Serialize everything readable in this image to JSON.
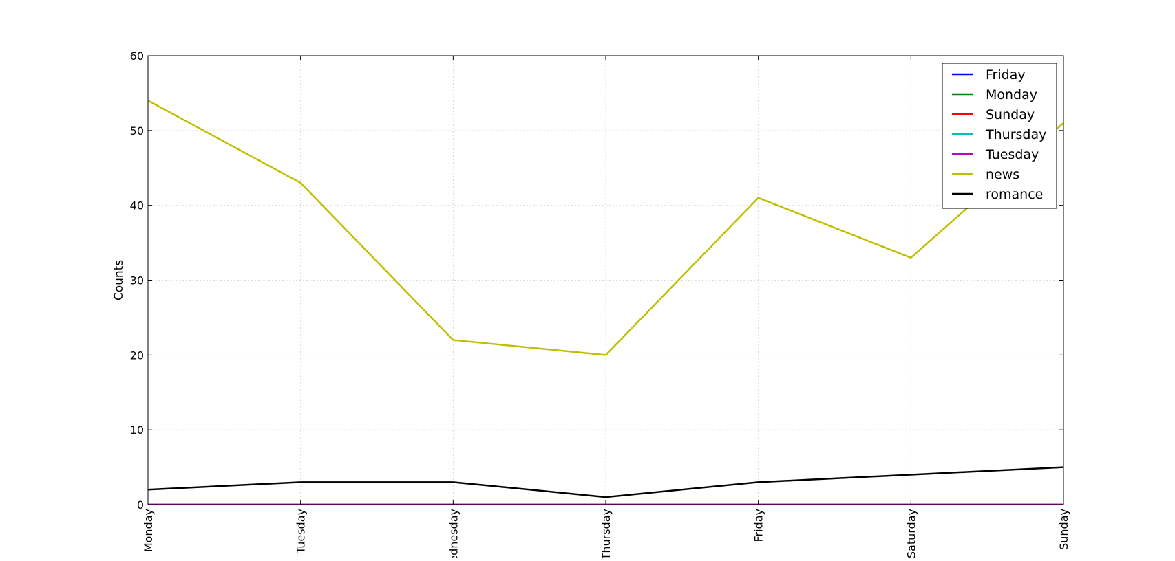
{
  "chart_data": {
    "type": "line",
    "title": "",
    "xlabel": "",
    "ylabel": "Counts",
    "categories": [
      "Monday",
      "Tuesday",
      "Wednesday",
      "Thursday",
      "Friday",
      "Saturday",
      "Sunday"
    ],
    "ylim": [
      0,
      60
    ],
    "yticks": [
      "0",
      "10",
      "20",
      "30",
      "40",
      "50",
      "60"
    ],
    "grid": true,
    "legend_position": "top-right",
    "series": [
      {
        "name": "Friday",
        "color": "#0000ff",
        "values": [
          0,
          0,
          0,
          0,
          0,
          0,
          0
        ]
      },
      {
        "name": "Monday",
        "color": "#008000",
        "values": [
          0,
          0,
          0,
          0,
          0,
          0,
          0
        ]
      },
      {
        "name": "Sunday",
        "color": "#ff0000",
        "values": [
          0,
          0,
          0,
          0,
          0,
          0,
          0
        ]
      },
      {
        "name": "Thursday",
        "color": "#00bfbf",
        "values": [
          0,
          0,
          0,
          0,
          0,
          0,
          0
        ]
      },
      {
        "name": "Tuesday",
        "color": "#bf00bf",
        "values": [
          0,
          0,
          0,
          0,
          0,
          0,
          0
        ]
      },
      {
        "name": "news",
        "color": "#bfbf00",
        "values": [
          54,
          43,
          22,
          20,
          41,
          33,
          51
        ]
      },
      {
        "name": "romance",
        "color": "#000000",
        "values": [
          2,
          3,
          3,
          1,
          3,
          4,
          5
        ]
      }
    ]
  }
}
